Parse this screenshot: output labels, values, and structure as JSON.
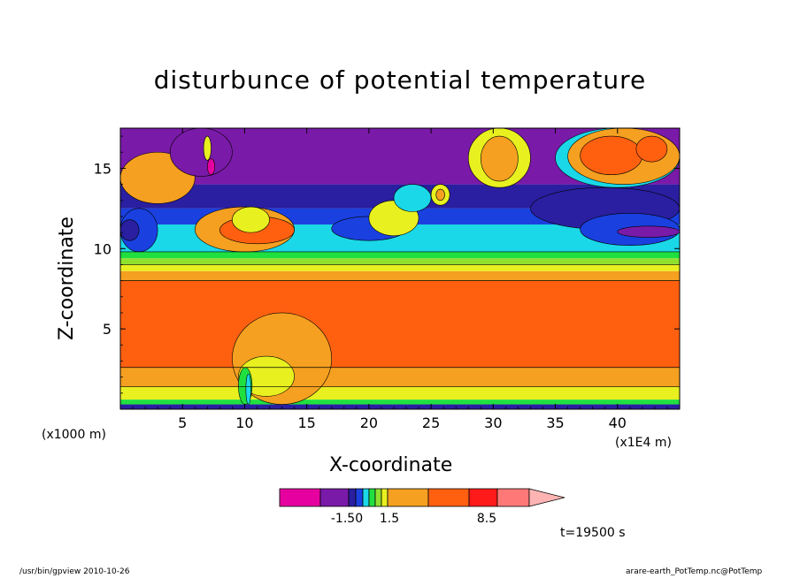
{
  "chart_data": {
    "type": "heatmap",
    "title": "disturbunce of potential temperature",
    "xlabel": "X-coordinate",
    "ylabel": "Z-coordinate",
    "x_unit_left": "(x1000 m)",
    "x_unit_right": "(x1E4 m)",
    "x_ticks": [
      "5",
      "10",
      "15",
      "20",
      "25",
      "30",
      "35",
      "40"
    ],
    "y_ticks": [
      "5",
      "10",
      "15"
    ],
    "xlim": [
      0,
      45
    ],
    "ylim": [
      0,
      17.5
    ],
    "colorbar": {
      "labels": [
        "-1.50",
        "1.5",
        "8.5"
      ],
      "colors": [
        "#e600a0",
        "#7a1aa8",
        "#2a1fa0",
        "#1a40e0",
        "#1ad8e8",
        "#20e040",
        "#90e030",
        "#e8f020",
        "#f5a020",
        "#ff6010",
        "#ff1a1a",
        "#ff7878",
        "#ffb4b4"
      ]
    },
    "time_label": "t=19500 s",
    "bands_z": [
      {
        "z": [
          0.0,
          0.3
        ],
        "color": "#2a1fa0"
      },
      {
        "z": [
          0.3,
          0.6
        ],
        "color": "#20e040"
      },
      {
        "z": [
          0.6,
          1.4
        ],
        "color": "#e8f020"
      },
      {
        "z": [
          1.4,
          2.6
        ],
        "color": "#f5a020"
      },
      {
        "z": [
          2.6,
          8.0
        ],
        "color": "#ff6010"
      },
      {
        "z": [
          8.0,
          8.6
        ],
        "color": "#f5a020"
      },
      {
        "z": [
          8.6,
          9.0
        ],
        "color": "#e8f020"
      },
      {
        "z": [
          9.0,
          9.4
        ],
        "color": "#90e030"
      },
      {
        "z": [
          9.4,
          9.8
        ],
        "color": "#20e040"
      },
      {
        "z": [
          9.8,
          11.5
        ],
        "color": "#1ad8e8"
      },
      {
        "z": [
          11.5,
          12.5
        ],
        "color": "#1a40e0"
      },
      {
        "z": [
          12.5,
          14.0
        ],
        "color": "#2a1fa0"
      },
      {
        "z": [
          14.0,
          17.5
        ],
        "color": "#7a1aa8"
      }
    ],
    "features": [
      {
        "x": [
          0,
          6
        ],
        "z": [
          12.8,
          16.0
        ],
        "color": "#f5a020"
      },
      {
        "x": [
          6,
          14
        ],
        "z": [
          9.8,
          12.6
        ],
        "color": "#f5a020"
      },
      {
        "x": [
          8,
          14
        ],
        "z": [
          10.3,
          12.0
        ],
        "color": "#ff6010"
      },
      {
        "x": [
          9,
          12
        ],
        "z": [
          11.0,
          12.6
        ],
        "color": "#e8f020"
      },
      {
        "x": [
          4,
          9
        ],
        "z": [
          14.5,
          17.5
        ],
        "color": "#7a1aa8"
      },
      {
        "x": [
          6.7,
          7.3
        ],
        "z": [
          15.5,
          17.0
        ],
        "color": "#e8f020"
      },
      {
        "x": [
          7.0,
          7.6
        ],
        "z": [
          14.6,
          15.6
        ],
        "color": "#e600a0"
      },
      {
        "x": [
          0,
          3
        ],
        "z": [
          9.8,
          12.5
        ],
        "color": "#1a40e0"
      },
      {
        "x": [
          0,
          1.5
        ],
        "z": [
          10.5,
          11.8
        ],
        "color": "#2a1fa0"
      },
      {
        "x": [
          17,
          23
        ],
        "z": [
          10.5,
          12.0
        ],
        "color": "#1a40e0"
      },
      {
        "x": [
          20,
          24
        ],
        "z": [
          10.8,
          13.0
        ],
        "color": "#e8f020"
      },
      {
        "x": [
          22,
          25
        ],
        "z": [
          12.3,
          14.0
        ],
        "color": "#1ad8e8"
      },
      {
        "x": [
          25,
          26.5
        ],
        "z": [
          12.7,
          14.0
        ],
        "color": "#e8f020"
      },
      {
        "x": [
          25.4,
          26.1
        ],
        "z": [
          13.0,
          13.7
        ],
        "color": "#f5a020"
      },
      {
        "x": [
          28,
          33
        ],
        "z": [
          13.8,
          17.5
        ],
        "color": "#e8f020"
      },
      {
        "x": [
          29,
          32
        ],
        "z": [
          14.2,
          17.0
        ],
        "color": "#f5a020"
      },
      {
        "x": [
          33,
          45
        ],
        "z": [
          11.2,
          13.8
        ],
        "color": "#2a1fa0"
      },
      {
        "x": [
          37,
          45
        ],
        "z": [
          10.2,
          12.2
        ],
        "color": "#1a40e0"
      },
      {
        "x": [
          35,
          45
        ],
        "z": [
          13.8,
          17.5
        ],
        "color": "#1ad8e8"
      },
      {
        "x": [
          36,
          45
        ],
        "z": [
          14.0,
          17.5
        ],
        "color": "#f5a020"
      },
      {
        "x": [
          37,
          42
        ],
        "z": [
          14.6,
          17.0
        ],
        "color": "#ff6010"
      },
      {
        "x": [
          41.5,
          44
        ],
        "z": [
          15.4,
          17.0
        ],
        "color": "#ff6010"
      },
      {
        "x": [
          40,
          45
        ],
        "z": [
          10.7,
          11.4
        ],
        "color": "#7a1aa8"
      },
      {
        "x": [
          9,
          17
        ],
        "z": [
          0.3,
          6.0
        ],
        "color": "#f5a020"
      },
      {
        "x": [
          9.5,
          14
        ],
        "z": [
          0.8,
          3.3
        ],
        "color": "#e8f020"
      },
      {
        "x": [
          9.5,
          10.6
        ],
        "z": [
          0.3,
          2.6
        ],
        "color": "#20e040"
      },
      {
        "x": [
          10.1,
          10.5
        ],
        "z": [
          0.3,
          2.2
        ],
        "color": "#1ad8e8"
      }
    ]
  },
  "footer": {
    "left": "/usr/bin/gpview   2010-10-26",
    "right": "arare-earth_PotTemp.nc@PotTemp"
  }
}
